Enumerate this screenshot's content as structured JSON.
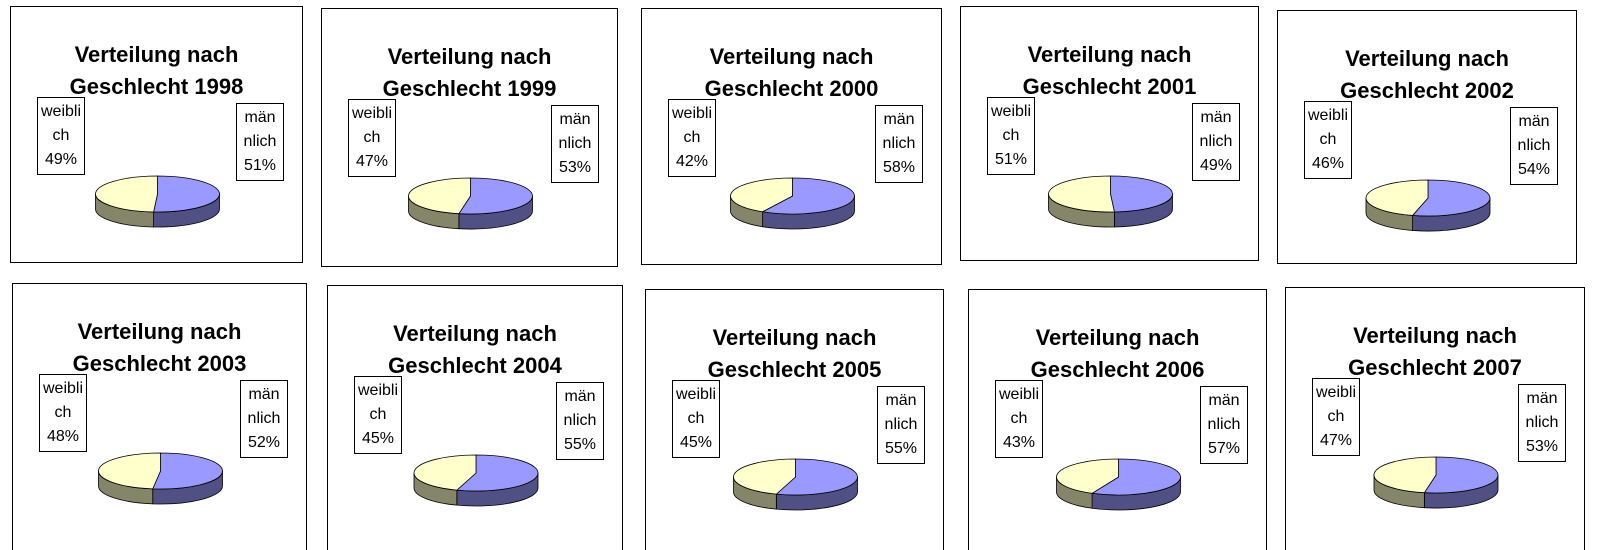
{
  "chart_data": [
    {
      "type": "pie",
      "title": "Verteilung nach Geschlecht 1998",
      "categories": [
        "männlich",
        "weiblich"
      ],
      "values": [
        51,
        49
      ],
      "value_labels": [
        "51%",
        "49%"
      ],
      "colors": [
        "#9999ff",
        "#ffffcc"
      ]
    },
    {
      "type": "pie",
      "title": "Verteilung nach Geschlecht 1999",
      "categories": [
        "männlich",
        "weiblich"
      ],
      "values": [
        53,
        47
      ],
      "value_labels": [
        "53%",
        "47%"
      ],
      "colors": [
        "#9999ff",
        "#ffffcc"
      ]
    },
    {
      "type": "pie",
      "title": "Verteilung nach Geschlecht 2000",
      "categories": [
        "männlich",
        "weiblich"
      ],
      "values": [
        58,
        42
      ],
      "value_labels": [
        "58%",
        "42%"
      ],
      "colors": [
        "#9999ff",
        "#ffffcc"
      ]
    },
    {
      "type": "pie",
      "title": "Verteilung nach Geschlecht 2001",
      "categories": [
        "männlich",
        "weiblich"
      ],
      "values": [
        49,
        51
      ],
      "value_labels": [
        "49%",
        "51%"
      ],
      "colors": [
        "#9999ff",
        "#ffffcc"
      ]
    },
    {
      "type": "pie",
      "title": "Verteilung nach Geschlecht 2002",
      "categories": [
        "männlich",
        "weiblich"
      ],
      "values": [
        54,
        46
      ],
      "value_labels": [
        "54%",
        "46%"
      ],
      "colors": [
        "#9999ff",
        "#ffffcc"
      ]
    },
    {
      "type": "pie",
      "title": "Verteilung nach Geschlecht 2003",
      "categories": [
        "männlich",
        "weiblich"
      ],
      "values": [
        52,
        48
      ],
      "value_labels": [
        "52%",
        "48%"
      ],
      "colors": [
        "#9999ff",
        "#ffffcc"
      ]
    },
    {
      "type": "pie",
      "title": "Verteilung nach Geschlecht 2004",
      "categories": [
        "männlich",
        "weiblich"
      ],
      "values": [
        55,
        45
      ],
      "value_labels": [
        "55%",
        "45%"
      ],
      "colors": [
        "#9999ff",
        "#ffffcc"
      ]
    },
    {
      "type": "pie",
      "title": "Verteilung nach Geschlecht 2005",
      "categories": [
        "männlich",
        "weiblich"
      ],
      "values": [
        55,
        45
      ],
      "value_labels": [
        "55%",
        "45%"
      ],
      "colors": [
        "#9999ff",
        "#ffffcc"
      ]
    },
    {
      "type": "pie",
      "title": "Verteilung nach Geschlecht 2006",
      "categories": [
        "männlich",
        "weiblich"
      ],
      "values": [
        57,
        43
      ],
      "value_labels": [
        "57%",
        "43%"
      ],
      "colors": [
        "#9999ff",
        "#ffffcc"
      ]
    },
    {
      "type": "pie",
      "title": "Verteilung nach Geschlecht 2007",
      "categories": [
        "männlich",
        "weiblich"
      ],
      "values": [
        53,
        47
      ],
      "value_labels": [
        "53%",
        "47%"
      ],
      "colors": [
        "#9999ff",
        "#ffffcc"
      ]
    }
  ]
}
